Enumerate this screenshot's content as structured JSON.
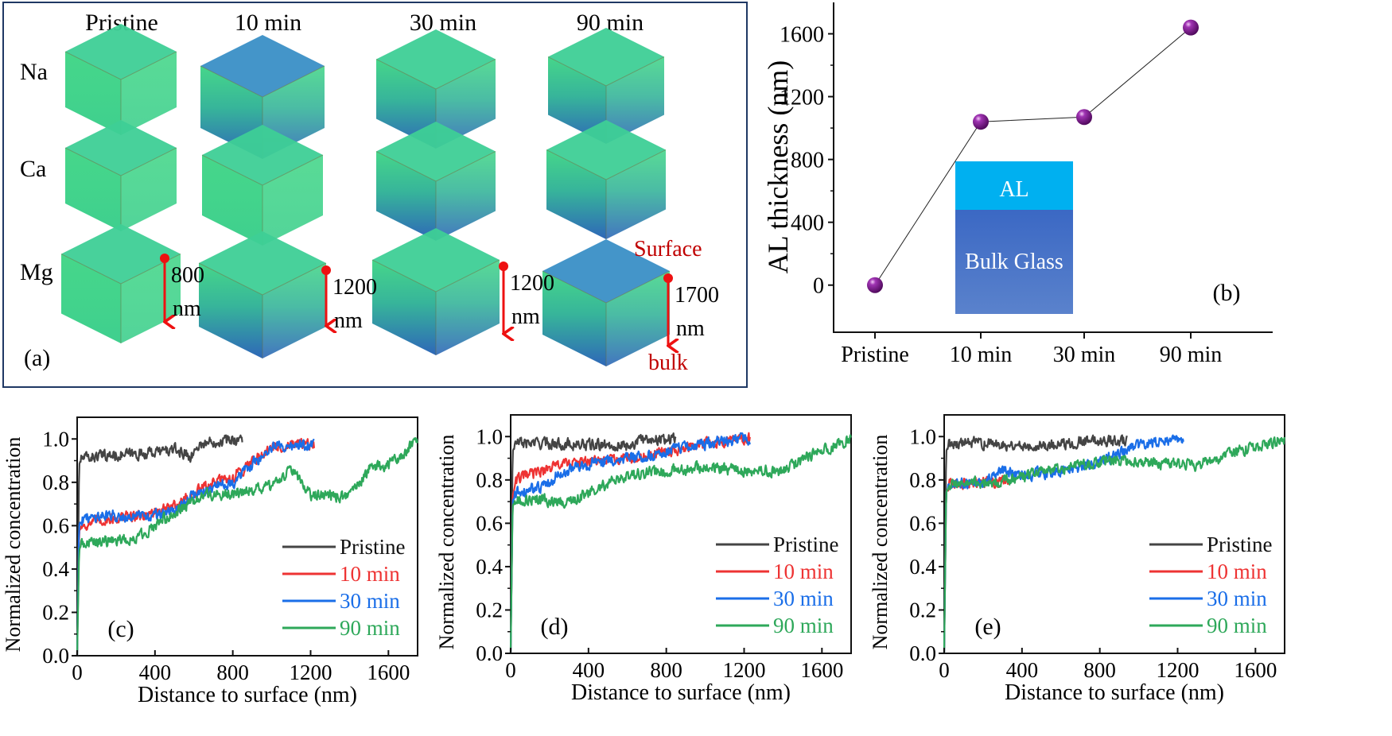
{
  "figure": {
    "panel_a": {
      "label": "(a)",
      "column_headers": [
        "Pristine",
        "10 min",
        "30 min",
        "90 min"
      ],
      "row_labels": [
        "Na",
        "Ca",
        "Mg"
      ],
      "depth_annotations": [
        {
          "value": "800",
          "unit": "nm"
        },
        {
          "value": "1200",
          "unit": "nm"
        },
        {
          "value": "1200",
          "unit": "nm"
        },
        {
          "value": "1700",
          "unit": "nm"
        }
      ],
      "surface_label": "Surface",
      "bulk_label": "bulk",
      "colors": {
        "frame": "#1f3864",
        "arrow": "#ee1111",
        "annotation_text": "#c00000",
        "cube_green": "#3fd08a",
        "cube_blue": "#2d5fb5"
      }
    }
  },
  "chart_data": [
    {
      "id": "b",
      "type": "line",
      "panel_label": "(b)",
      "title": "",
      "xlabel": "",
      "ylabel": "AL thickness (nm)",
      "categories": [
        "Pristine",
        "10 min",
        "30 min",
        "90 min"
      ],
      "values": [
        0,
        1040,
        1070,
        1640
      ],
      "ylim": [
        -300,
        1800
      ],
      "yticks": [
        0,
        400,
        800,
        1200,
        1600
      ],
      "grid": false,
      "marker_color": "#7a0f8a",
      "line_color": "#222222",
      "inset": {
        "top_label": "AL",
        "bottom_label": "Bulk Glass",
        "top_color": "#00b0f0",
        "bottom_color": "#4472c4"
      }
    },
    {
      "id": "c",
      "type": "line",
      "panel_label": "(c)",
      "xlabel": "Distance to surface (nm)",
      "ylabel": "Normalized concentration",
      "xlim": [
        0,
        1750
      ],
      "ylim": [
        0,
        1.1
      ],
      "xticks": [
        0,
        400,
        800,
        1200,
        1600
      ],
      "yticks": [
        0.0,
        0.2,
        0.4,
        0.6,
        0.8,
        1.0
      ],
      "legend_position": "lower-right",
      "grid": false,
      "series": [
        {
          "name": "Pristine",
          "color": "#444444",
          "x": [
            0,
            10,
            20,
            100,
            300,
            500,
            590,
            620,
            700,
            850
          ],
          "y": [
            0,
            0.88,
            0.91,
            0.92,
            0.93,
            0.95,
            0.92,
            0.97,
            0.99,
            1.0
          ]
        },
        {
          "name": "10 min",
          "color": "#ee3333",
          "x": [
            0,
            10,
            20,
            150,
            350,
            480,
            600,
            700,
            800,
            900,
            1000,
            1100,
            1220
          ],
          "y": [
            0,
            0.57,
            0.6,
            0.63,
            0.65,
            0.68,
            0.75,
            0.8,
            0.82,
            0.9,
            0.96,
            0.97,
            0.97
          ]
        },
        {
          "name": "30 min",
          "color": "#1a6ee8",
          "x": [
            0,
            10,
            20,
            150,
            350,
            480,
            600,
            700,
            800,
            900,
            1000,
            1100,
            1220
          ],
          "y": [
            0,
            0.6,
            0.63,
            0.65,
            0.64,
            0.66,
            0.74,
            0.78,
            0.8,
            0.88,
            0.96,
            0.97,
            0.97
          ]
        },
        {
          "name": "90 min",
          "color": "#2ea85a",
          "x": [
            0,
            10,
            20,
            300,
            500,
            650,
            800,
            1000,
            1100,
            1200,
            1300,
            1400,
            1500,
            1650,
            1750
          ],
          "y": [
            0,
            0.48,
            0.52,
            0.54,
            0.66,
            0.74,
            0.75,
            0.78,
            0.86,
            0.74,
            0.74,
            0.73,
            0.86,
            0.9,
            1.0
          ]
        }
      ]
    },
    {
      "id": "d",
      "type": "line",
      "panel_label": "(d)",
      "xlabel": "Distance to surface (nm)",
      "ylabel": "Normalized concentration",
      "xlim": [
        0,
        1750
      ],
      "ylim": [
        0,
        1.1
      ],
      "xticks": [
        0,
        400,
        800,
        1200,
        1600
      ],
      "yticks": [
        0.0,
        0.2,
        0.4,
        0.6,
        0.8,
        1.0
      ],
      "legend_position": "lower-right",
      "grid": false,
      "series": [
        {
          "name": "Pristine",
          "color": "#444444",
          "x": [
            0,
            10,
            25,
            200,
            400,
            600,
            700,
            850
          ],
          "y": [
            0,
            0.93,
            0.97,
            0.97,
            0.96,
            0.96,
            0.99,
            0.99
          ]
        },
        {
          "name": "10 min",
          "color": "#ee3333",
          "x": [
            0,
            10,
            25,
            150,
            250,
            350,
            500,
            700,
            900,
            1100,
            1230
          ],
          "y": [
            0,
            0.72,
            0.8,
            0.84,
            0.87,
            0.88,
            0.89,
            0.91,
            0.95,
            0.98,
            0.99
          ]
        },
        {
          "name": "30 min",
          "color": "#1a6ee8",
          "x": [
            0,
            10,
            25,
            150,
            250,
            350,
            500,
            700,
            900,
            1100,
            1230
          ],
          "y": [
            0,
            0.7,
            0.74,
            0.76,
            0.83,
            0.86,
            0.89,
            0.91,
            0.95,
            0.98,
            0.99
          ]
        },
        {
          "name": "90 min",
          "color": "#2ea85a",
          "x": [
            0,
            10,
            25,
            300,
            450,
            600,
            800,
            1000,
            1200,
            1400,
            1550,
            1750
          ],
          "y": [
            0,
            0.68,
            0.71,
            0.7,
            0.76,
            0.82,
            0.84,
            0.86,
            0.84,
            0.84,
            0.92,
            0.99
          ]
        }
      ]
    },
    {
      "id": "e",
      "type": "line",
      "panel_label": "(e)",
      "xlabel": "Distance to surface (nm)",
      "ylabel": "Normalized concentration",
      "xlim": [
        0,
        1750
      ],
      "ylim": [
        0,
        1.1
      ],
      "xticks": [
        0,
        400,
        800,
        1200,
        1600
      ],
      "yticks": [
        0.0,
        0.2,
        0.4,
        0.6,
        0.8,
        1.0
      ],
      "legend_position": "lower-right",
      "grid": false,
      "series": [
        {
          "name": "Pristine",
          "color": "#444444",
          "x": [
            0,
            10,
            25,
            200,
            400,
            600,
            700,
            940
          ],
          "y": [
            0,
            0.93,
            0.97,
            0.97,
            0.96,
            0.96,
            0.98,
            0.98
          ]
        },
        {
          "name": "10 min",
          "color": "#ee3333",
          "x": [
            0,
            10,
            25,
            200,
            330
          ],
          "y": [
            0,
            0.74,
            0.78,
            0.79,
            0.8
          ]
        },
        {
          "name": "30 min",
          "color": "#1a6ee8",
          "x": [
            0,
            10,
            25,
            200,
            300,
            400,
            600,
            800,
            1000,
            1230
          ],
          "y": [
            0,
            0.74,
            0.78,
            0.79,
            0.84,
            0.82,
            0.84,
            0.88,
            0.96,
            0.99
          ]
        },
        {
          "name": "90 min",
          "color": "#2ea85a",
          "x": [
            0,
            10,
            25,
            300,
            500,
            700,
            900,
            1100,
            1300,
            1500,
            1750
          ],
          "y": [
            0,
            0.74,
            0.78,
            0.79,
            0.84,
            0.87,
            0.89,
            0.88,
            0.87,
            0.93,
            0.99
          ]
        }
      ]
    }
  ]
}
